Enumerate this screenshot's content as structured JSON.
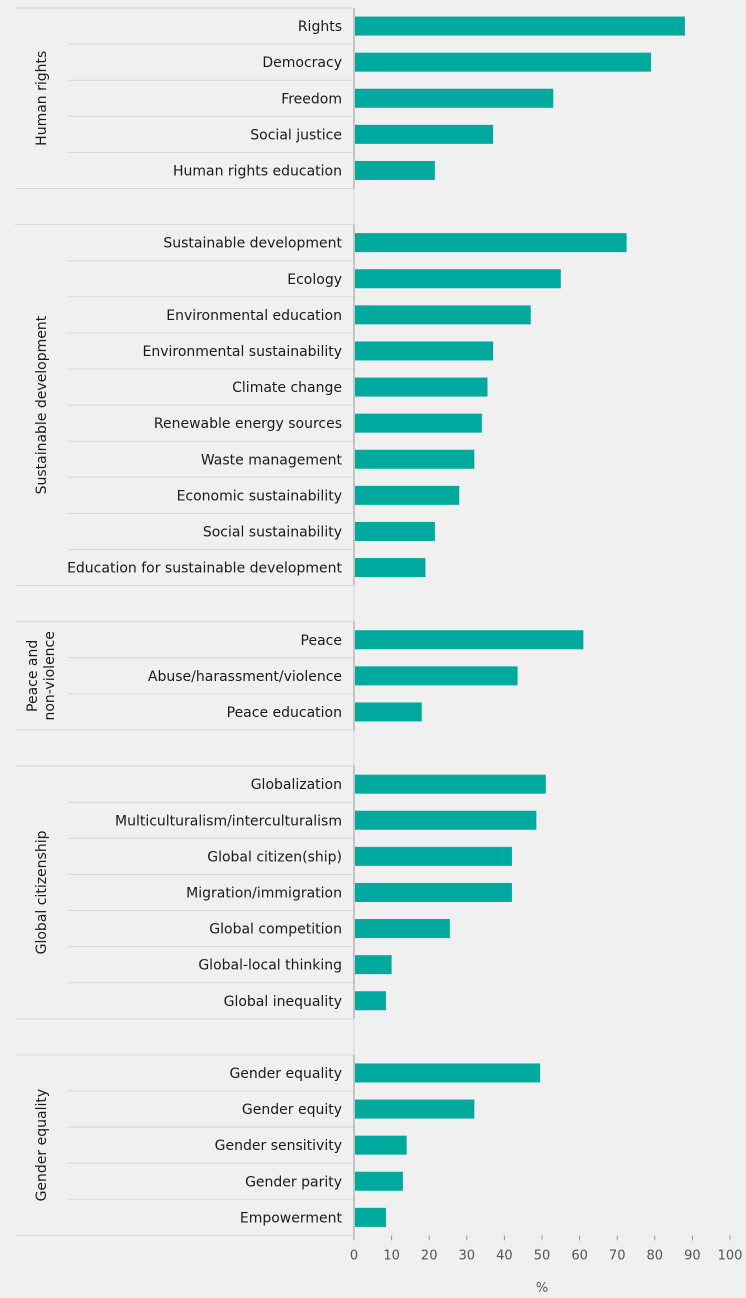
{
  "chart_data": {
    "type": "bar",
    "orientation": "horizontal",
    "xlabel": "%",
    "xlim": [
      0,
      100
    ],
    "xticks": [
      0,
      10,
      20,
      30,
      40,
      50,
      60,
      70,
      80,
      90,
      100
    ],
    "grid": false,
    "bar_color": "#00a99d",
    "groups": [
      {
        "name": "Human rights",
        "items": [
          {
            "label": "Rights",
            "value": 88
          },
          {
            "label": "Democracy",
            "value": 79
          },
          {
            "label": "Freedom",
            "value": 53
          },
          {
            "label": "Social justice",
            "value": 37
          },
          {
            "label": "Human rights education",
            "value": 21.5
          }
        ]
      },
      {
        "name": "Sustainable development",
        "items": [
          {
            "label": "Sustainable development",
            "value": 72.5
          },
          {
            "label": "Ecology",
            "value": 55
          },
          {
            "label": "Environmental education",
            "value": 47
          },
          {
            "label": "Environmental sustainability",
            "value": 37
          },
          {
            "label": "Climate change",
            "value": 35.5
          },
          {
            "label": "Renewable energy sources",
            "value": 34
          },
          {
            "label": "Waste management",
            "value": 32
          },
          {
            "label": "Economic sustainability",
            "value": 28
          },
          {
            "label": "Social sustainability",
            "value": 21.5
          },
          {
            "label": "Education for sustainable development",
            "value": 19
          }
        ]
      },
      {
        "name": "Peace and non-violence",
        "name_lines": [
          "Peace and",
          "non-violence"
        ],
        "items": [
          {
            "label": "Peace",
            "value": 61
          },
          {
            "label": "Abuse/harassment/violence",
            "value": 43.5
          },
          {
            "label": "Peace education",
            "value": 18
          }
        ]
      },
      {
        "name": "Global citizenship",
        "items": [
          {
            "label": "Globalization",
            "value": 51
          },
          {
            "label": "Multiculturalism/interculturalism",
            "value": 48.5
          },
          {
            "label": "Global citizen(ship)",
            "value": 42
          },
          {
            "label": "Migration/immigration",
            "value": 42
          },
          {
            "label": "Global competition",
            "value": 25.5
          },
          {
            "label": "Global-local thinking",
            "value": 10
          },
          {
            "label": "Global inequality",
            "value": 8.5
          }
        ]
      },
      {
        "name": "Gender equality",
        "items": [
          {
            "label": "Gender equality",
            "value": 49.5
          },
          {
            "label": "Gender equity",
            "value": 32
          },
          {
            "label": "Gender sensitivity",
            "value": 14
          },
          {
            "label": "Gender parity",
            "value": 13
          },
          {
            "label": "Empowerment",
            "value": 8.5
          }
        ]
      }
    ]
  }
}
